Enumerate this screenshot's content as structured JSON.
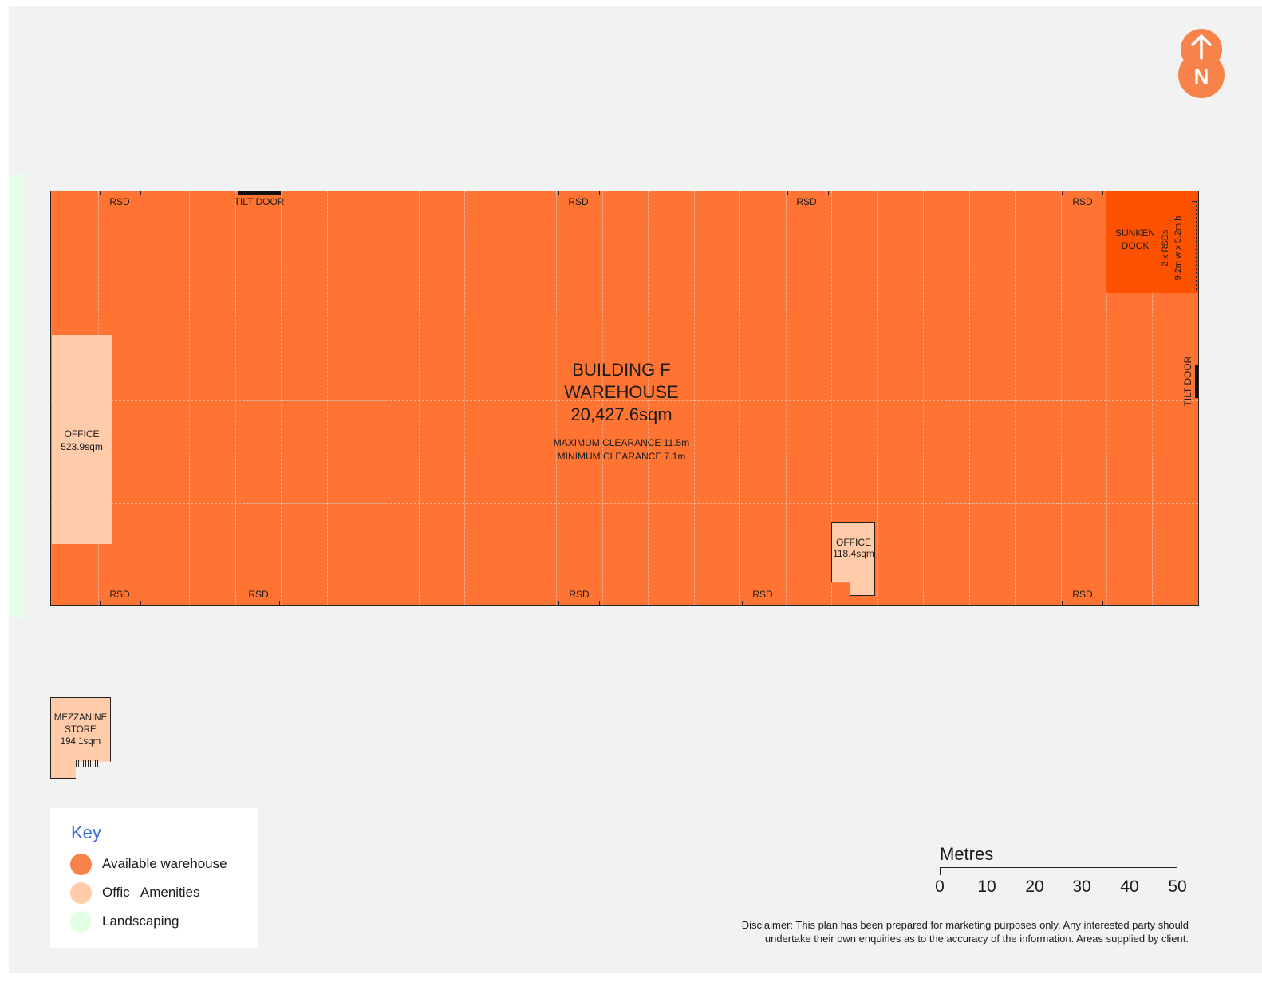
{
  "building": {
    "name_line1": "BUILDING F",
    "name_line2": "WAREHOUSE",
    "area": "20,427.6sqm",
    "max_clearance": "MAXIMUM CLEARANCE 11.5m",
    "min_clearance": "MINIMUM CLEARANCE 7.1m"
  },
  "doors": {
    "rsd": "RSD",
    "tilt_door": "TILT DOOR",
    "sunken_dock_line1": "SUNKEN",
    "sunken_dock_line2": "DOCK",
    "rsd_spec_line1": "2 x RSDs",
    "rsd_spec_line2": "9.2m w x 5.2m h"
  },
  "offices": {
    "main_label": "OFFICE",
    "main_area": "523.9sqm",
    "small_label": "OFFICE",
    "small_area": "118.4sqm"
  },
  "mezzanine": {
    "line1": "MEZZANINE",
    "line2": "STORE",
    "line3": "194.1sqm"
  },
  "key": {
    "title": "Key",
    "items": [
      {
        "label": "Available warehouse",
        "color": "#f7834a"
      },
      {
        "label": "Offic   Amenities",
        "color": "#ffcba8"
      },
      {
        "label": "Landscaping",
        "color": "#e3ffe3"
      }
    ]
  },
  "north": {
    "label": "N",
    "color": "#f7834a"
  },
  "scale": {
    "title": "Metres",
    "ticks": [
      "0",
      "10",
      "20",
      "30",
      "40",
      "50"
    ]
  },
  "disclaimer": {
    "line1": "Disclaimer: This plan has been prepared for marketing purposes only. Any interested party should",
    "line2": "undertake their own enquiries as to the accuracy of the information. Areas supplied by client."
  },
  "colors": {
    "warehouse": "#ff7433",
    "sunken_dock": "#ff5200",
    "office": "#ffcba8",
    "landscaping": "#e6ffe6",
    "key_title": "#3b6fe0"
  }
}
